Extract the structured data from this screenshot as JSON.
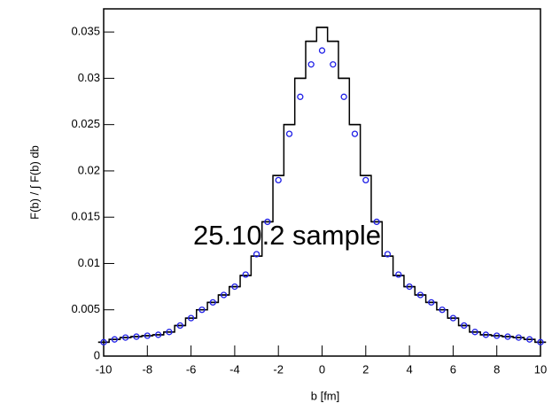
{
  "chart_data": {
    "type": "line",
    "x_label": "b [fm]",
    "y_label": "F(b) / ∫ F(b) db",
    "annotation": "25.10.2 sample",
    "xlim": [
      -10,
      10
    ],
    "ylim": [
      0,
      0.0375
    ],
    "xticks": [
      -10,
      -8,
      -6,
      -4,
      -2,
      0,
      2,
      4,
      6,
      8,
      10
    ],
    "yticks": [
      0,
      0.005,
      0.01,
      0.015,
      0.02,
      0.025,
      0.03,
      0.035
    ],
    "x": [
      -10,
      -9.5,
      -9,
      -8.5,
      -8,
      -7.5,
      -7,
      -6.5,
      -6,
      -5.5,
      -5,
      -4.5,
      -4,
      -3.5,
      -3,
      -2.5,
      -2,
      -1.5,
      -1,
      -0.5,
      0,
      0.5,
      1,
      1.5,
      2,
      2.5,
      3,
      3.5,
      4,
      4.5,
      5,
      5.5,
      6,
      6.5,
      7,
      7.5,
      8,
      8.5,
      9,
      9.5,
      10
    ],
    "series": [
      {
        "style": "step",
        "color": "#000000",
        "values": [
          0.0015,
          0.0018,
          0.002,
          0.0021,
          0.0022,
          0.0023,
          0.0026,
          0.0033,
          0.0041,
          0.005,
          0.0058,
          0.0066,
          0.0075,
          0.0087,
          0.0108,
          0.0145,
          0.0195,
          0.025,
          0.03,
          0.034,
          0.0355,
          0.034,
          0.03,
          0.025,
          0.0195,
          0.0145,
          0.0108,
          0.0087,
          0.0075,
          0.0066,
          0.0058,
          0.005,
          0.0041,
          0.0033,
          0.0026,
          0.0023,
          0.0022,
          0.0021,
          0.002,
          0.0018,
          0.0015
        ]
      },
      {
        "style": "circle",
        "color": "#1f1fe6",
        "values": [
          0.0015,
          0.0018,
          0.002,
          0.0021,
          0.0022,
          0.0023,
          0.0026,
          0.0033,
          0.0041,
          0.005,
          0.0058,
          0.0066,
          0.0075,
          0.0088,
          0.011,
          0.0145,
          0.019,
          0.024,
          0.028,
          0.0315,
          0.033,
          0.0315,
          0.028,
          0.024,
          0.019,
          0.0145,
          0.011,
          0.0088,
          0.0075,
          0.0066,
          0.0058,
          0.005,
          0.0041,
          0.0033,
          0.0026,
          0.0023,
          0.0022,
          0.0021,
          0.002,
          0.0018,
          0.0015
        ]
      }
    ]
  }
}
